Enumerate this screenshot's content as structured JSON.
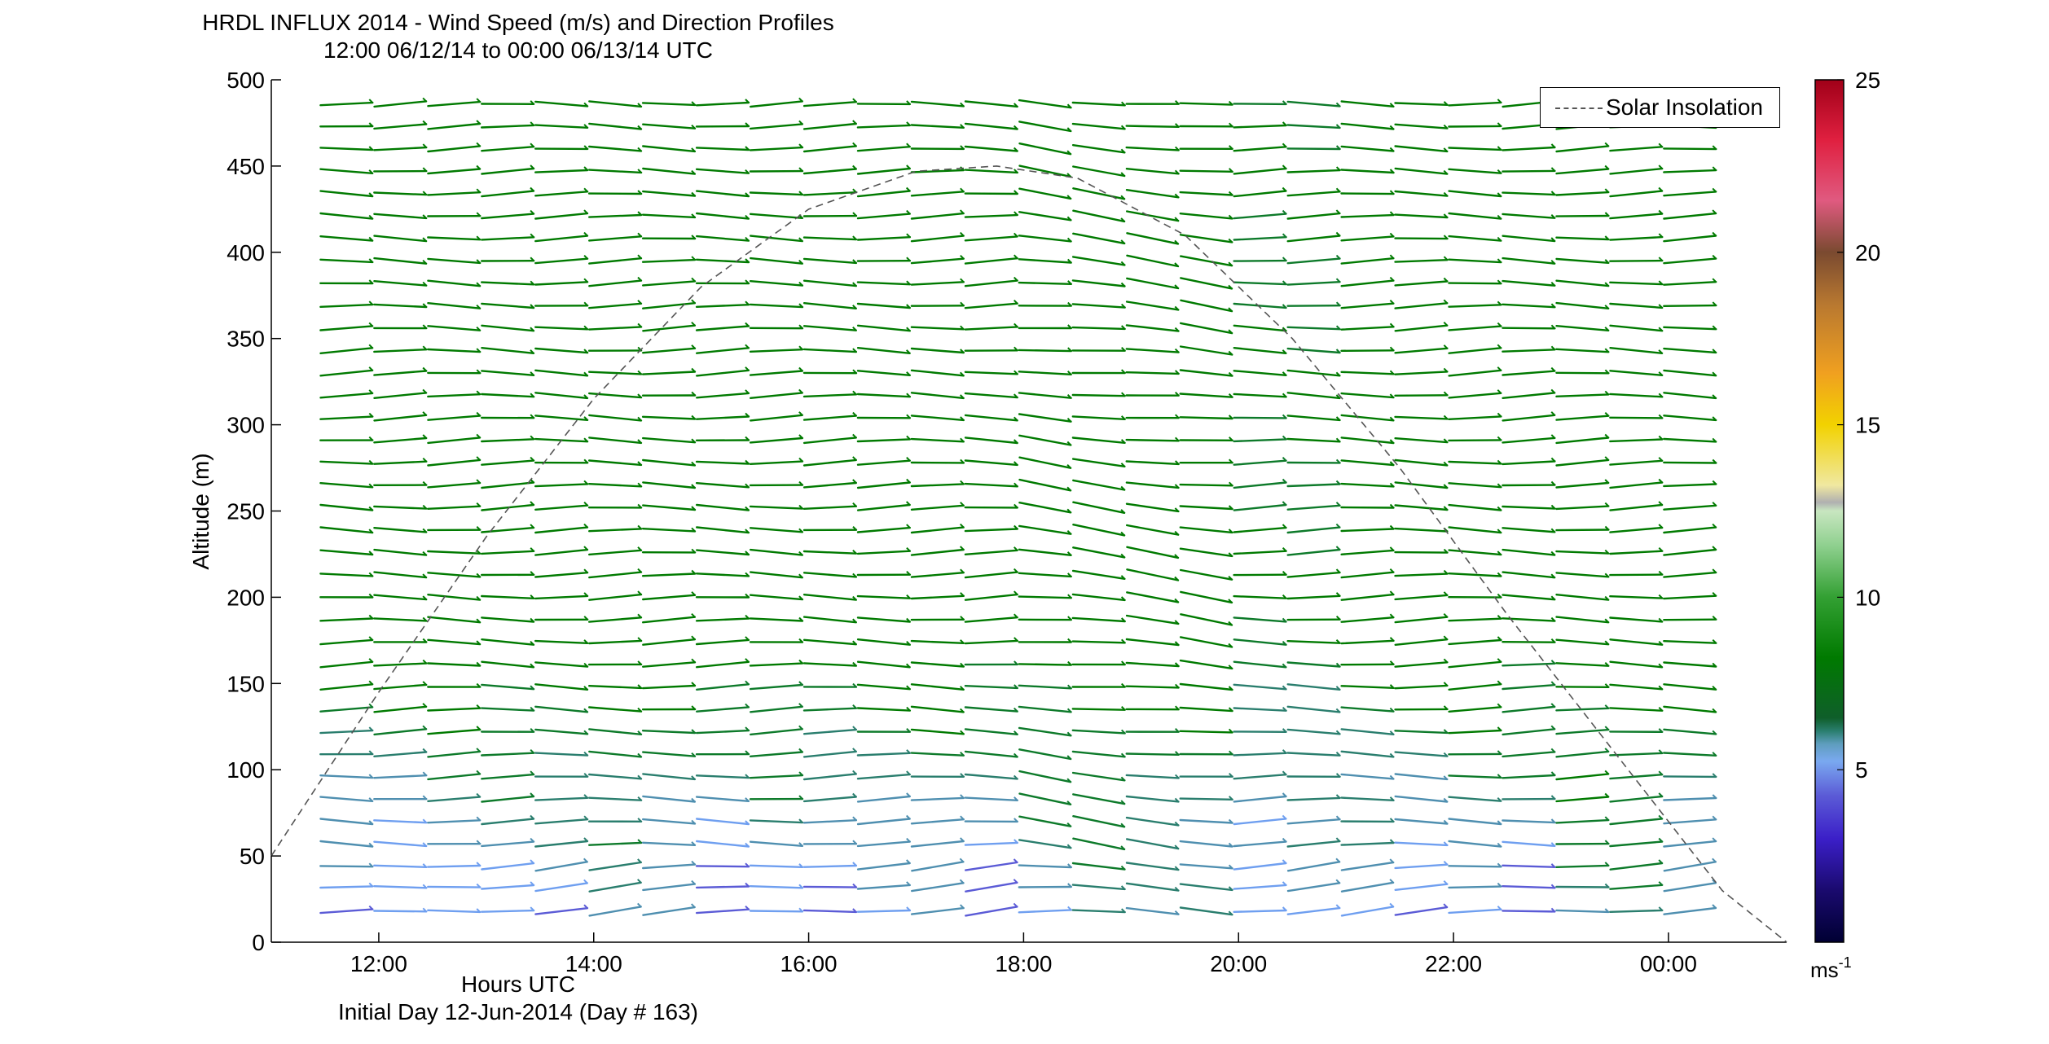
{
  "chart_data": {
    "type": "wind-barb",
    "title": "HRDL INFLUX 2014 - Wind Speed (m/s) and Direction Profiles",
    "subtitle": "12:00 06/12/14 to 00:00 06/13/14  UTC",
    "xlabel": "Hours UTC",
    "xlabel2": "Initial Day 12-Jun-2014 (Day # 163)",
    "ylabel": "Altitude (m)",
    "ylim": [
      0,
      500
    ],
    "y_ticks": [
      "0",
      "50",
      "100",
      "150",
      "200",
      "250",
      "300",
      "350",
      "400",
      "450",
      "500"
    ],
    "x_ticks": [
      "12:00",
      "14:00",
      "16:00",
      "18:00",
      "20:00",
      "22:00",
      "00:00"
    ],
    "xlim_hours": [
      11.0,
      25.1
    ],
    "profile_times_hours": [
      11.7,
      12.2,
      12.7,
      13.2,
      13.7,
      14.2,
      14.7,
      15.2,
      15.7,
      16.2,
      16.7,
      17.2,
      17.7,
      18.2,
      18.7,
      19.2,
      19.7,
      20.2,
      20.7,
      21.2,
      21.7,
      22.2,
      22.7,
      23.2,
      23.7,
      24.2
    ],
    "levels_m": [
      18,
      32,
      44,
      57,
      70,
      83,
      96,
      109,
      122,
      135,
      148,
      161,
      174,
      187,
      200,
      213,
      226,
      239,
      252,
      265,
      278,
      291,
      304,
      317,
      330,
      343,
      356,
      369,
      382,
      395,
      408,
      421,
      434,
      447,
      460,
      473,
      486
    ],
    "wind_speed_ms": {
      "description": "speed by profile (rows of times) near surface -> aloft; typical 5 m/s at 18 m rising to ~9 m/s aloft",
      "surface_speed_by_time": [
        3,
        3,
        4,
        4,
        4,
        5,
        4,
        3,
        4,
        3,
        4,
        4,
        3,
        5,
        6,
        5,
        5,
        4,
        5,
        4,
        3,
        4,
        3,
        6,
        6,
        4
      ],
      "aloft_speed": 8.5
    },
    "solar_insolation": {
      "name": "Solar Insolation",
      "x_hours": [
        11.0,
        12.0,
        13.0,
        14.0,
        15.0,
        16.0,
        17.0,
        17.75,
        18.5,
        19.5,
        20.5,
        21.5,
        22.5,
        23.5,
        24.5,
        25.1
      ],
      "y_m": [
        50,
        145,
        235,
        315,
        380,
        425,
        447,
        450,
        443,
        410,
        350,
        275,
        190,
        110,
        30,
        0
      ]
    },
    "colorbar": {
      "label": "ms-1",
      "unit_base": "ms",
      "unit_exp": "-1",
      "range": [
        0,
        25
      ],
      "ticks": [
        "5",
        "10",
        "15",
        "20",
        "25"
      ]
    },
    "legend_position": "top-right",
    "grid": false
  }
}
